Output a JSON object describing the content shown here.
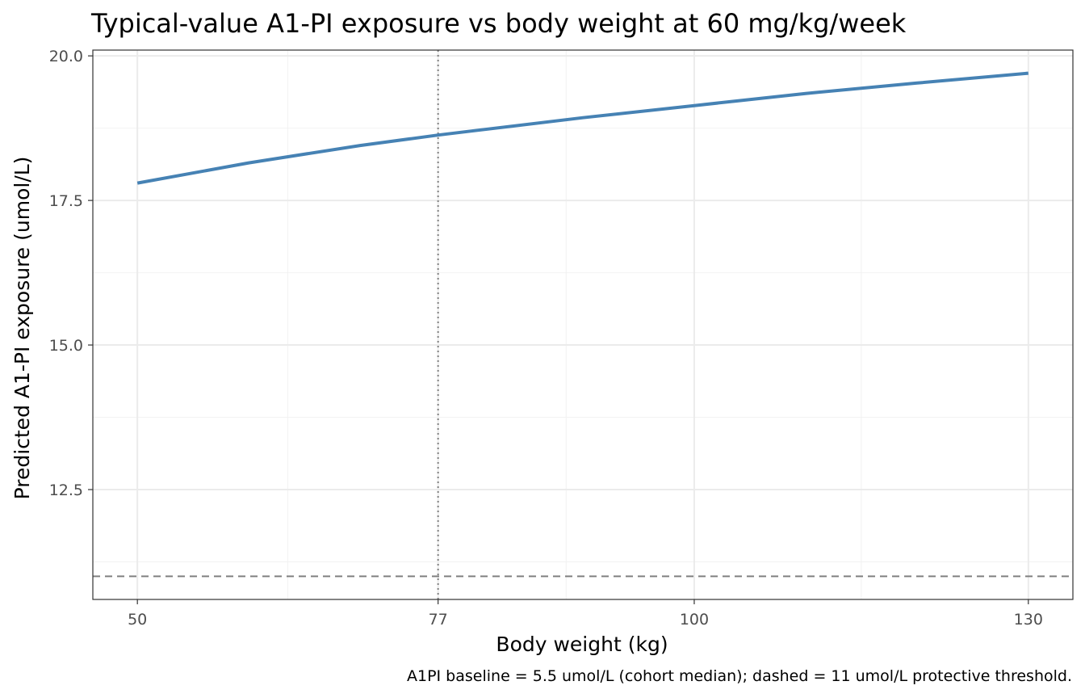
{
  "chart_data": {
    "type": "line",
    "title": "Typical-value A1-PI exposure vs body weight at 60 mg/kg/week",
    "xlabel": "Body weight (kg)",
    "ylabel": "Predicted A1-PI exposure (umol/L)",
    "caption": "A1PI baseline = 5.5 umol/L (cohort median); dashed = 11 umol/L protective threshold.",
    "xlim": [
      46,
      134
    ],
    "ylim": [
      10.6,
      20.1
    ],
    "x_ticks": [
      50,
      77,
      100,
      130
    ],
    "x_tick_labels": [
      "50",
      "77",
      "100",
      "130"
    ],
    "y_ticks": [
      12.5,
      15.0,
      17.5,
      20.0
    ],
    "y_tick_labels": [
      "12.5",
      "15.0",
      "17.5",
      "20.0"
    ],
    "x_minor_grid": [
      63.5,
      88.5,
      115
    ],
    "y_minor_grid": [
      11.25,
      13.75,
      16.25,
      18.75
    ],
    "grid": true,
    "series": [
      {
        "color": "#4682b4",
        "x": [
          50,
          60,
          70,
          77,
          80,
          90,
          100,
          110,
          120,
          130
        ],
        "y": [
          17.8,
          18.15,
          18.45,
          18.63,
          18.7,
          18.93,
          19.14,
          19.35,
          19.53,
          19.7
        ]
      }
    ],
    "reference_lines": [
      {
        "orientation": "vertical",
        "value": 77,
        "style": "dotted",
        "color": "#808080"
      },
      {
        "orientation": "horizontal",
        "value": 11,
        "style": "dashed",
        "color": "#808080"
      }
    ]
  }
}
